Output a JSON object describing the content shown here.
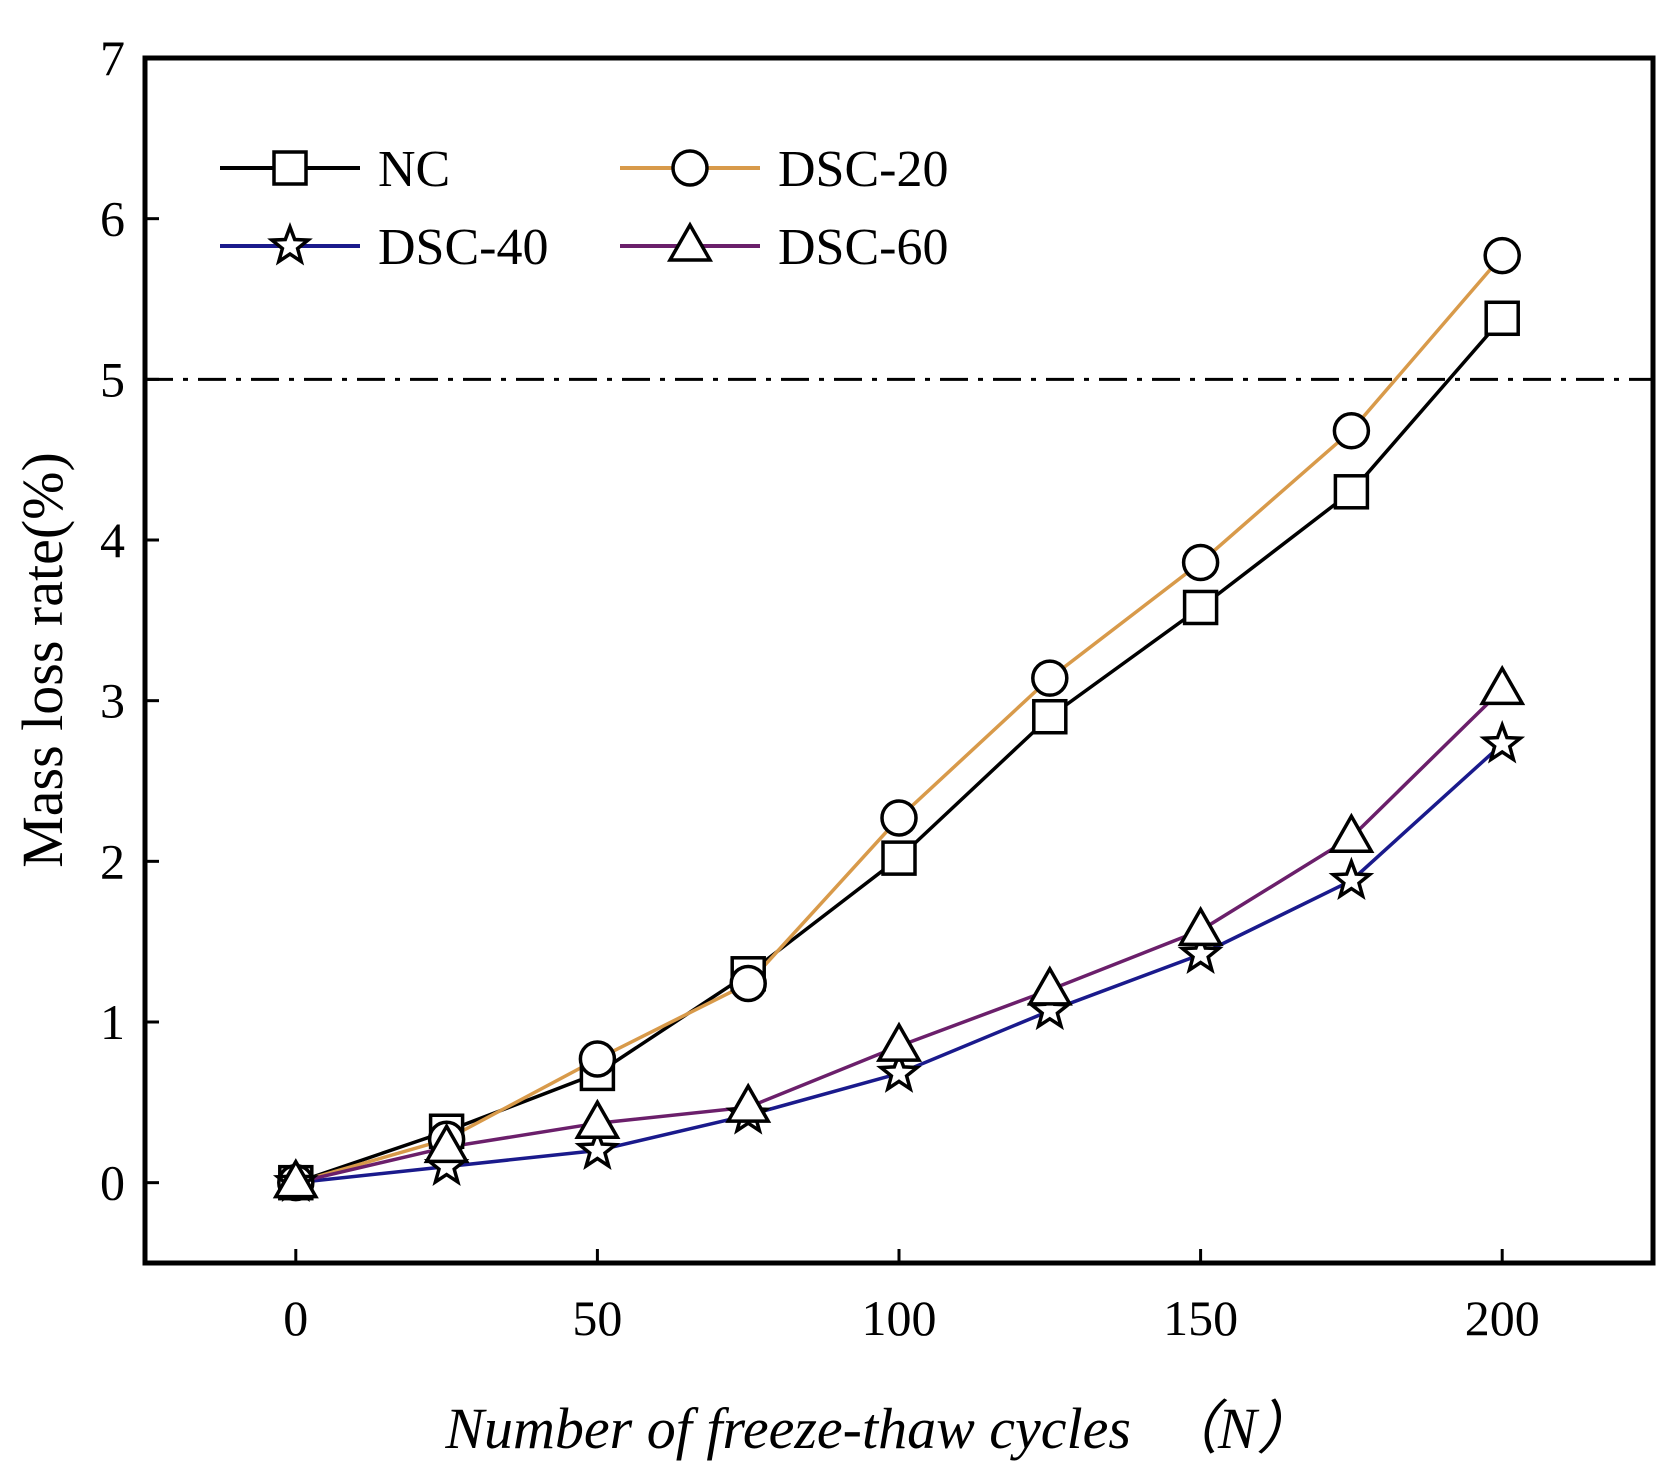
{
  "chart_data": {
    "type": "line",
    "title": "",
    "xlabel": "Number of freeze-thaw cycles　（N）",
    "ylabel": "Mass loss rate(%)",
    "xlim": [
      -25,
      225
    ],
    "ylim": [
      -0.5,
      7
    ],
    "xticks": [
      0,
      50,
      100,
      150,
      200
    ],
    "yticks": [
      0,
      1,
      2,
      3,
      4,
      5,
      6,
      7
    ],
    "x": [
      0,
      25,
      50,
      75,
      100,
      125,
      150,
      175,
      200
    ],
    "reference_line": {
      "y": 5,
      "style": "dash-dot"
    },
    "legend": {
      "position": "top-left",
      "columns": 2
    },
    "series": [
      {
        "name": "NC",
        "color": "#000000",
        "marker": "square",
        "values": [
          0,
          0.32,
          0.68,
          1.3,
          2.02,
          2.9,
          3.58,
          4.3,
          5.38
        ]
      },
      {
        "name": "DSC-20",
        "color": "#d89a4a",
        "marker": "circle",
        "values": [
          0,
          0.27,
          0.77,
          1.24,
          2.27,
          3.14,
          3.86,
          4.68,
          5.77
        ]
      },
      {
        "name": "DSC-40",
        "color": "#1a1a8c",
        "marker": "star",
        "values": [
          0,
          0.1,
          0.2,
          0.42,
          0.68,
          1.07,
          1.42,
          1.88,
          2.73
        ]
      },
      {
        "name": "DSC-60",
        "color": "#6b1f6b",
        "marker": "triangle",
        "values": [
          0,
          0.22,
          0.37,
          0.47,
          0.85,
          1.2,
          1.57,
          2.15,
          3.07
        ]
      }
    ]
  }
}
